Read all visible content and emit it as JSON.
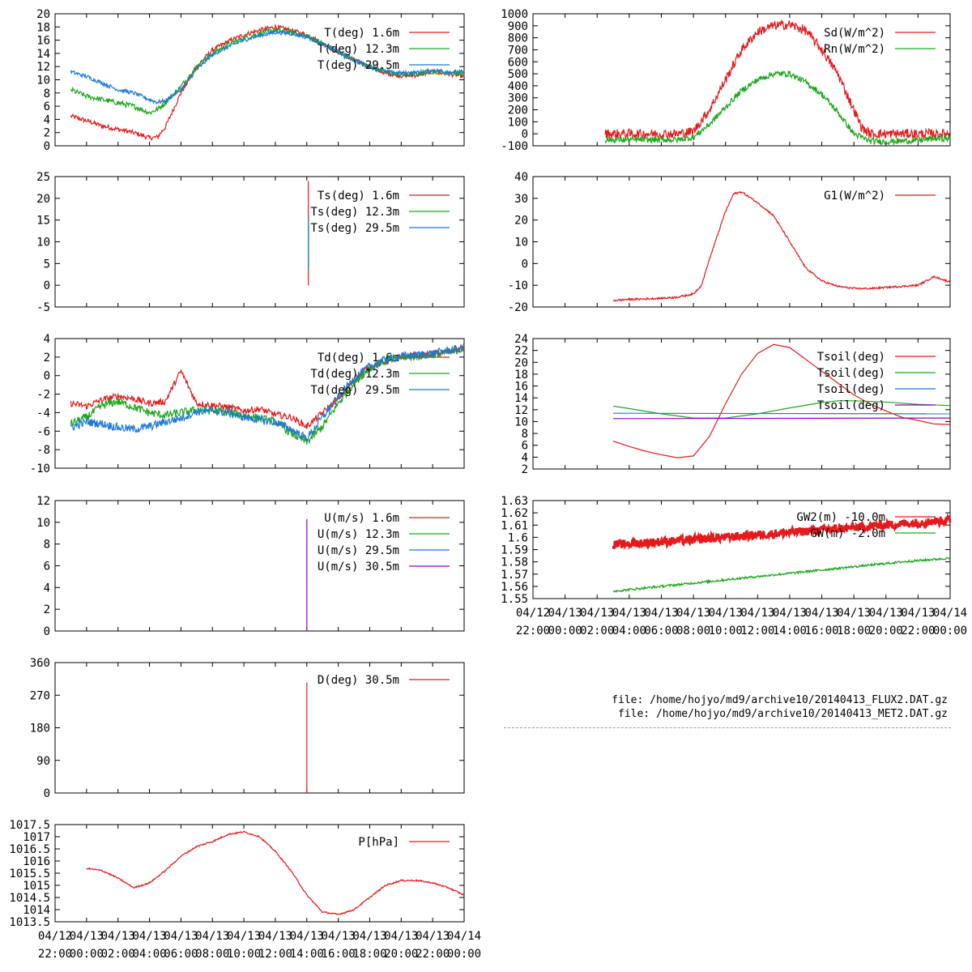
{
  "colors": {
    "red": "#e41a1c",
    "green": "#1ca61c",
    "blue": "#1f78d4",
    "purple": "#9400d3",
    "axis": "#000000"
  },
  "time_ticks": {
    "top": [
      "04/12",
      "04/13",
      "04/13",
      "04/13",
      "04/13",
      "04/13",
      "04/13",
      "04/13",
      "04/13",
      "04/13",
      "04/13",
      "04/13",
      "04/13",
      "04/14"
    ],
    "bottom": [
      "22:00",
      "00:00",
      "02:00",
      "04:00",
      "06:00",
      "08:00",
      "10:00",
      "12:00",
      "14:00",
      "16:00",
      "18:00",
      "20:00",
      "22:00",
      "00:00"
    ]
  },
  "files": [
    "file: /home/hojyo/md9/archive10/20140413_FLUX2.DAT.gz",
    "file: /home/hojyo/md9/archive10/20140413_MET2.DAT.gz"
  ],
  "chart_data": [
    {
      "id": "temp",
      "type": "line",
      "ylim": [
        0,
        20
      ],
      "yticks": [
        "0",
        "2",
        "4",
        "6",
        "8",
        "10",
        "12",
        "14",
        "16",
        "18",
        "20"
      ],
      "xlim": [
        0,
        26
      ],
      "x_tick_labels": false,
      "series": [
        {
          "name": "T(deg)  1.6m",
          "color": "red",
          "noise": 0.35,
          "x": [
            1,
            2,
            3,
            4,
            5,
            6,
            6.5,
            7,
            8,
            9,
            10,
            11,
            12,
            13,
            14,
            15,
            16,
            17,
            18,
            19,
            20,
            21,
            22,
            23,
            24,
            25,
            26
          ],
          "y": [
            4.5,
            3.8,
            3,
            2.5,
            2,
            1.2,
            1.3,
            2.8,
            8,
            12,
            14.5,
            15.8,
            16.8,
            17.5,
            18,
            17.5,
            16.8,
            15.5,
            14.2,
            13,
            12,
            11,
            10.6,
            10.7,
            11.2,
            10.9,
            10.5
          ]
        },
        {
          "name": "T(deg) 12.3m",
          "color": "green",
          "noise": 0.4,
          "x": [
            1,
            2,
            3,
            4,
            5,
            6,
            6.5,
            7,
            8,
            9,
            10,
            11,
            12,
            13,
            14,
            15,
            16,
            17,
            18,
            19,
            20,
            21,
            22,
            23,
            24,
            25,
            26
          ],
          "y": [
            8.5,
            7.5,
            7,
            6.5,
            6,
            5,
            5.5,
            6.5,
            9,
            12,
            14,
            15.3,
            16.3,
            17,
            17.5,
            17.2,
            16.6,
            15.5,
            14.2,
            13,
            12,
            11.2,
            10.8,
            10.9,
            11.3,
            11.1,
            11
          ]
        },
        {
          "name": "T(deg) 29.5m",
          "color": "blue",
          "noise": 0.3,
          "x": [
            1,
            2,
            3,
            4,
            5,
            6,
            6.5,
            7,
            8,
            9,
            10,
            11,
            12,
            13,
            14,
            15,
            16,
            17,
            18,
            19,
            20,
            21,
            22,
            23,
            24,
            25,
            26
          ],
          "y": [
            11.2,
            10.5,
            9.5,
            8.5,
            8,
            7,
            6.6,
            6.8,
            8.5,
            11.5,
            13.8,
            15,
            16,
            16.7,
            17.2,
            17,
            16.5,
            15.4,
            14.2,
            13,
            12,
            11.2,
            11,
            11.1,
            11.4,
            11.2,
            11.2
          ]
        }
      ]
    },
    {
      "id": "ts",
      "type": "line",
      "ylim": [
        -5,
        25
      ],
      "yticks": [
        "-5",
        "0",
        "5",
        "10",
        "15",
        "20",
        "25"
      ],
      "xlim": [
        0,
        26
      ],
      "x_tick_labels": false,
      "series": [
        {
          "name": "Ts(deg)  1.6m",
          "color": "red",
          "noise": 0,
          "x": [
            16.1,
            16.1
          ],
          "y": [
            0,
            24
          ]
        },
        {
          "name": "Ts(deg) 12.3m",
          "color": "green",
          "noise": 0,
          "x": [
            16.1,
            16.1
          ],
          "y": [
            3.5,
            14
          ]
        },
        {
          "name": "Ts(deg) 29.5m",
          "color": "blue",
          "noise": 0,
          "x": [
            16.1,
            16.1
          ],
          "y": [
            4,
            16
          ]
        }
      ]
    },
    {
      "id": "td",
      "type": "line",
      "ylim": [
        -10,
        4
      ],
      "yticks": [
        "-10",
        "-8",
        "-6",
        "-4",
        "-2",
        "0",
        "2",
        "4"
      ],
      "xlim": [
        0,
        26
      ],
      "x_tick_labels": false,
      "series": [
        {
          "name": "Td(deg)  1.6m",
          "color": "red",
          "noise": 0.35,
          "x": [
            1,
            2,
            3,
            4,
            5,
            6,
            7,
            8,
            9,
            10,
            11,
            12,
            13,
            14,
            15,
            16,
            17,
            18,
            19,
            20,
            21,
            22,
            23,
            24,
            25,
            26
          ],
          "y": [
            -3,
            -3.3,
            -2.6,
            -2.2,
            -2.5,
            -3,
            -2.8,
            0.5,
            -3,
            -3.2,
            -3.4,
            -3.8,
            -3.6,
            -4.2,
            -4.5,
            -5.5,
            -4,
            -2.5,
            -0.5,
            1,
            1.5,
            2,
            2.2,
            2.3,
            2.6,
            3
          ]
        },
        {
          "name": "Td(deg) 12.3m",
          "color": "green",
          "noise": 0.45,
          "x": [
            1,
            2,
            3,
            4,
            5,
            6,
            7,
            8,
            9,
            10,
            11,
            12,
            13,
            14,
            15,
            16,
            17,
            18,
            19,
            20,
            21,
            22,
            23,
            24,
            25,
            26
          ],
          "y": [
            -5.2,
            -4.5,
            -3.2,
            -2.8,
            -3.4,
            -4,
            -4.3,
            -4,
            -3.7,
            -3.8,
            -4,
            -4.3,
            -4.6,
            -5,
            -6.2,
            -7.2,
            -5.5,
            -3,
            -0.8,
            0.8,
            1.6,
            2,
            2.1,
            2.3,
            2.5,
            2.9
          ]
        },
        {
          "name": "Td(deg) 29.5m",
          "color": "blue",
          "noise": 0.45,
          "x": [
            1,
            2,
            3,
            4,
            5,
            6,
            7,
            8,
            9,
            10,
            11,
            12,
            13,
            14,
            15,
            16,
            17,
            18,
            19,
            20,
            21,
            22,
            23,
            24,
            25,
            26
          ],
          "y": [
            -5.6,
            -5,
            -5.2,
            -5.6,
            -5.8,
            -5.5,
            -5,
            -4.6,
            -3.9,
            -3.8,
            -4,
            -4.5,
            -4.8,
            -5,
            -5.8,
            -6.8,
            -4.5,
            -2.3,
            -0.3,
            1,
            1.7,
            2.1,
            2.2,
            2.4,
            2.7,
            3
          ]
        }
      ]
    },
    {
      "id": "wind",
      "type": "line",
      "ylim": [
        0,
        12
      ],
      "yticks": [
        "0",
        "2",
        "4",
        "6",
        "8",
        "10",
        "12"
      ],
      "xlim": [
        0,
        26
      ],
      "x_tick_labels": false,
      "series": [
        {
          "name": "U(m/s)  1.6m",
          "color": "red",
          "noise": 0,
          "x": [],
          "y": []
        },
        {
          "name": "U(m/s) 12.3m",
          "color": "green",
          "noise": 0,
          "x": [],
          "y": []
        },
        {
          "name": "U(m/s) 29.5m",
          "color": "blue",
          "noise": 0,
          "x": [],
          "y": []
        },
        {
          "name": "U(m/s) 30.5m",
          "color": "purple",
          "noise": 0,
          "x": [
            16.0,
            16.0
          ],
          "y": [
            0,
            10.3
          ]
        }
      ]
    },
    {
      "id": "dir",
      "type": "line",
      "ylim": [
        0,
        360
      ],
      "yticks": [
        "0",
        "90",
        "180",
        "270",
        "360"
      ],
      "xlim": [
        0,
        26
      ],
      "x_tick_labels": false,
      "series": [
        {
          "name": "D(deg)  30.5m",
          "color": "red",
          "noise": 0,
          "x": [
            16.0,
            16.0
          ],
          "y": [
            0,
            305
          ]
        }
      ]
    },
    {
      "id": "press",
      "type": "line",
      "ylim": [
        1013.5,
        1017.5
      ],
      "yticks": [
        "1013.5",
        "1014",
        "1014.5",
        "1015",
        "1015.5",
        "1016",
        "1016.5",
        "1017",
        "1017.5"
      ],
      "xlim": [
        0,
        26
      ],
      "x_tick_labels": true,
      "series": [
        {
          "name": "P[hPa]",
          "color": "red",
          "noise": 0.03,
          "x": [
            2,
            3,
            4,
            5,
            6,
            7,
            8,
            9,
            10,
            11,
            12,
            13,
            14,
            15,
            16,
            17,
            18,
            19,
            20,
            21,
            22,
            23,
            24,
            25,
            26
          ],
          "y": [
            1015.7,
            1015.6,
            1015.3,
            1014.9,
            1015.1,
            1015.6,
            1016.2,
            1016.6,
            1016.8,
            1017.1,
            1017.2,
            1017,
            1016.4,
            1015.6,
            1014.6,
            1013.9,
            1013.8,
            1014,
            1014.5,
            1015,
            1015.2,
            1015.2,
            1015.1,
            1014.9,
            1014.6
          ]
        }
      ]
    },
    {
      "id": "rad",
      "type": "line",
      "ylim": [
        -100,
        1000
      ],
      "yticks": [
        "-100",
        "0",
        "100",
        "200",
        "300",
        "400",
        "500",
        "600",
        "700",
        "800",
        "900",
        "1000"
      ],
      "xlim": [
        0,
        26
      ],
      "x_tick_labels": false,
      "series": [
        {
          "name": "Sd(W/m^2)",
          "color": "red",
          "noise": 40,
          "x": [
            4.5,
            5,
            6,
            7,
            8,
            9,
            10,
            11,
            12,
            13,
            14,
            15,
            16,
            17,
            18,
            19,
            20,
            20.5,
            21,
            22,
            23,
            24,
            25,
            26
          ],
          "y": [
            0,
            0,
            0,
            0,
            0,
            0,
            20,
            200,
            450,
            700,
            850,
            900,
            910,
            860,
            700,
            500,
            200,
            50,
            0,
            0,
            0,
            0,
            0,
            0
          ]
        },
        {
          "name": "Rn(W/m^2)",
          "color": "green",
          "noise": 25,
          "x": [
            4.5,
            5,
            6,
            7,
            8,
            9,
            10,
            11,
            12,
            13,
            14,
            15,
            16,
            17,
            18,
            19,
            20,
            21,
            22,
            23,
            24,
            25,
            26
          ],
          "y": [
            -50,
            -50,
            -50,
            -50,
            -50,
            -50,
            -30,
            80,
            220,
            360,
            450,
            500,
            500,
            430,
            330,
            180,
            0,
            -60,
            -65,
            -60,
            -55,
            -40,
            -40
          ]
        }
      ]
    },
    {
      "id": "g1",
      "type": "line",
      "ylim": [
        -20,
        40
      ],
      "yticks": [
        "-20",
        "-10",
        "0",
        "10",
        "20",
        "30",
        "40"
      ],
      "xlim": [
        0,
        26
      ],
      "x_tick_labels": false,
      "series": [
        {
          "name": "G1(W/m^2)",
          "color": "red",
          "noise": 0.4,
          "x": [
            5,
            6,
            7,
            8,
            9,
            10,
            10.5,
            11,
            11.5,
            12,
            12.5,
            13,
            14,
            15,
            16,
            17,
            18,
            19,
            20,
            21,
            22,
            23,
            24,
            25,
            26
          ],
          "y": [
            -17,
            -16.5,
            -16.3,
            -16,
            -15.5,
            -14,
            -10,
            2,
            13,
            24,
            32,
            33,
            28,
            22,
            10,
            -2,
            -8,
            -10.5,
            -11.5,
            -11.5,
            -11,
            -10.5,
            -10,
            -6,
            -8.5
          ]
        }
      ]
    },
    {
      "id": "tsoil",
      "type": "line",
      "ylim": [
        2,
        24
      ],
      "yticks": [
        "2",
        "4",
        "6",
        "8",
        "10",
        "12",
        "14",
        "16",
        "18",
        "20",
        "22",
        "24"
      ],
      "xlim": [
        0,
        26
      ],
      "x_tick_labels": false,
      "series": [
        {
          "name": "Tsoil(deg)",
          "color": "red",
          "noise": 0,
          "x": [
            5,
            6,
            7,
            8,
            9,
            10,
            11,
            12,
            13,
            14,
            15,
            16,
            17,
            18,
            19,
            20,
            21,
            22,
            23,
            24,
            25,
            26
          ],
          "y": [
            6.7,
            5.8,
            5,
            4.4,
            3.9,
            4.2,
            7.5,
            13,
            18,
            21.5,
            23,
            22.5,
            20.5,
            18.5,
            16.5,
            14.5,
            13,
            11.8,
            10.7,
            10.2,
            9.6,
            9.5
          ]
        },
        {
          "name": "Tsoil(deg)",
          "color": "green",
          "noise": 0,
          "x": [
            5,
            6,
            8,
            10,
            12,
            14,
            16,
            18,
            19,
            20,
            22,
            24,
            26
          ],
          "y": [
            12.6,
            12.2,
            11.3,
            10.6,
            10.6,
            11.3,
            12.3,
            13.2,
            13.5,
            13.5,
            13.3,
            12.9,
            12.7
          ]
        },
        {
          "name": "Tsoil(deg)",
          "color": "blue",
          "noise": 0,
          "x": [
            5,
            26
          ],
          "y": [
            11.4,
            11.3
          ]
        },
        {
          "name": "Tsoil(deg)",
          "color": "purple",
          "noise": 0,
          "x": [
            5,
            26
          ],
          "y": [
            10.5,
            10.6
          ]
        }
      ]
    },
    {
      "id": "gw",
      "type": "line",
      "ylim": [
        1.55,
        1.63
      ],
      "yticks": [
        "1.55",
        "1.56",
        "1.57",
        "1.58",
        "1.59",
        "1.6",
        "1.61",
        "1.62",
        "1.63"
      ],
      "xlim": [
        0,
        26
      ],
      "x_tick_labels": true,
      "series": [
        {
          "name": "GW2(m) -10.0m",
          "color": "red",
          "noise": 0.0035,
          "x": [
            5,
            10,
            15,
            20,
            26
          ],
          "y": [
            1.594,
            1.598,
            1.603,
            1.608,
            1.614
          ]
        },
        {
          "name": "GW(m) -2.0m",
          "color": "green",
          "noise": 0.0009,
          "x": [
            5,
            8,
            11,
            14,
            17,
            20,
            23,
            26
          ],
          "y": [
            1.556,
            1.56,
            1.564,
            1.568,
            1.572,
            1.576,
            1.58,
            1.583
          ]
        }
      ]
    }
  ]
}
